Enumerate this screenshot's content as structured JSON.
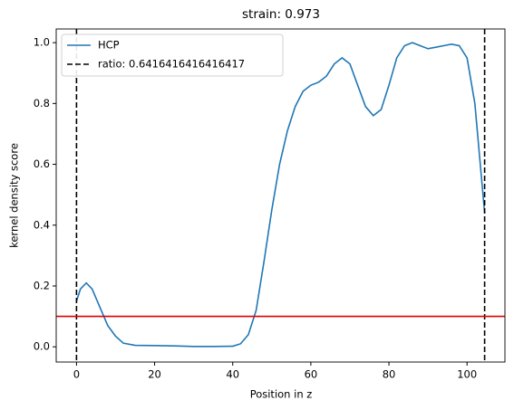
{
  "chart_data": {
    "type": "line",
    "title": "strain: 0.973",
    "x_label": "Position in z",
    "y_label": "kernel density score",
    "xlim": [
      -5.2,
      109.7
    ],
    "ylim": [
      -0.05,
      1.045
    ],
    "xticks": [
      0,
      20,
      40,
      60,
      80,
      100
    ],
    "yticks": [
      {
        "value": 0,
        "label": "0.0"
      },
      0.2,
      0.4,
      0.6,
      0.8,
      {
        "value": 1,
        "label": "1.0"
      }
    ],
    "legend": "upper left",
    "series": [
      {
        "name": "HCP",
        "color": "#1f77b4",
        "x": [
          0,
          1,
          2.5,
          4,
          6,
          8,
          10,
          12,
          15,
          20,
          25,
          30,
          35,
          40,
          42,
          44,
          46,
          48,
          50,
          52,
          54,
          56,
          58,
          60,
          62,
          64,
          66,
          68,
          70,
          72,
          74,
          76,
          78,
          80,
          82,
          84,
          86,
          88,
          90,
          92,
          94,
          96,
          98,
          100,
          102,
          104.5
        ],
        "values": [
          0.15,
          0.19,
          0.21,
          0.19,
          0.13,
          0.07,
          0.035,
          0.012,
          0.005,
          0.004,
          0.003,
          0.001,
          0.001,
          0.002,
          0.01,
          0.04,
          0.12,
          0.28,
          0.45,
          0.6,
          0.71,
          0.79,
          0.84,
          0.86,
          0.87,
          0.89,
          0.93,
          0.95,
          0.93,
          0.86,
          0.79,
          0.76,
          0.78,
          0.86,
          0.95,
          0.99,
          1.0,
          0.99,
          0.98,
          0.985,
          0.99,
          0.995,
          0.99,
          0.95,
          0.8,
          0.44
        ]
      }
    ],
    "vlines": {
      "name": "ratio: 0.6416416416416417",
      "color": "#000000",
      "values": [
        0,
        104.5
      ]
    },
    "hline": {
      "value": 0.1,
      "color": "#e00000"
    }
  }
}
